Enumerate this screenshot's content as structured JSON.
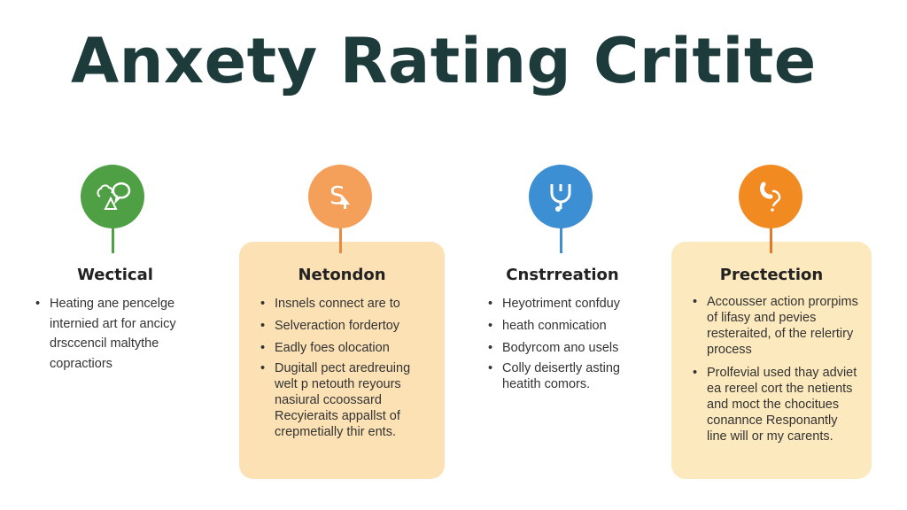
{
  "title": "Anxety Rating Critite",
  "colors": {
    "green": "#4fa044",
    "orange_light": "#f5a05a",
    "blue": "#3b8fd2",
    "orange": "#f28a22",
    "box_light": "#fbe1b4",
    "box_pale": "#fce9bd"
  },
  "columns": [
    {
      "heading": "Wectical",
      "icon": "tree-speech-bubble-icon",
      "bullets": [
        "Heating ane pencelge internied art for ancicy drsccencil maltythe copractiors"
      ]
    },
    {
      "heading": "Netondon",
      "icon": "dollar-cursor-icon",
      "bullets": [
        "Insnels connect are to",
        "Selveraction fordertoy",
        "Eadly foes olocation",
        "Dugitall pect aredreuing welt p netouth reyours nasiural ccoossard Recyieraits appallst of crepmetially thir ents."
      ]
    },
    {
      "heading": "Cnstrreation",
      "icon": "stethoscope-icon",
      "bullets": [
        "Heyotriment confduy",
        "heath conmication",
        "Bodyrcom ano usels",
        "Colly deisertly asting heatith comors."
      ]
    },
    {
      "heading": "Prectection",
      "icon": "phone-question-icon",
      "bullets": [
        "Accousser action prorpims of lifasy and pevies resteraited, of the relertiry process",
        "Prolfevial used thay adviet ea rereel cort the netients and moct the chocitues conannce Responantly line will or my carents."
      ]
    }
  ]
}
